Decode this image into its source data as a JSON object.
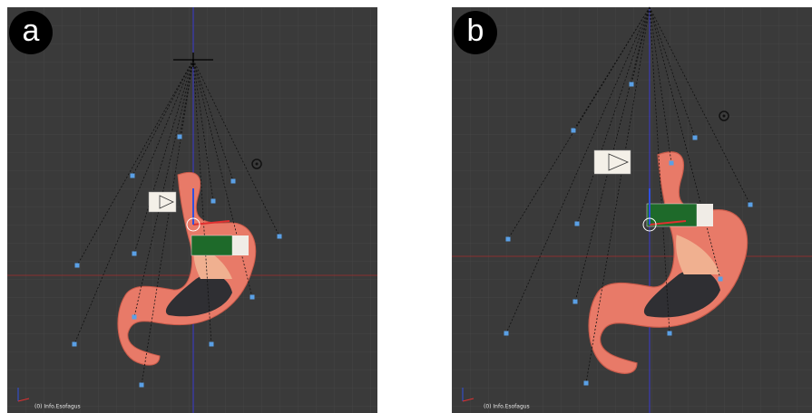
{
  "panels": [
    {
      "label": "a",
      "status": "(0) Info.Esofagus"
    },
    {
      "label": "b",
      "status": "(0) Info.Esofagus"
    }
  ]
}
